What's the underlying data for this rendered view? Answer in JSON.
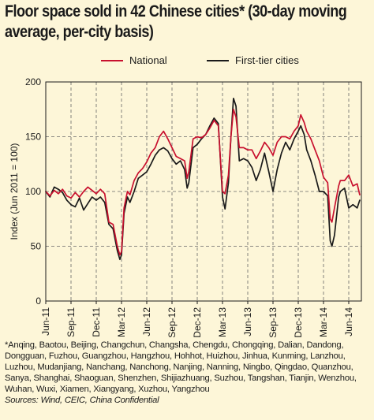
{
  "title_line1": "Floor space sold in 42 Chinese cities* (30-day moving",
  "title_line2": "average, per-city basis)",
  "footnote": "*Anqing, Baotou, Beijing, Changchun, Changsha, Chengdu, Chongqing, Dalian, Dandong, Dongguan, Fuzhou, Guangzhou, Hangzhou, Hohhot, Huizhou, Jinhua, Kunming, Lanzhou, Luzhou, Mudanjiang, Nanchang, Nanchong, Nanjing, Nanning, Ningbo, Qingdao, Quanzhou, Sanya, Shanghai, Shaoguan, Shenzhen, Shijiazhuang, Suzhou, Tangshan, Tianjin, Wenzhou, Wuhan, Wuxi, Xiamen, Xiangyang, Xuzhou, Yangzhou",
  "sources": "Sources: Wind, CEIC, China Confidential",
  "colors": {
    "national": "#c8102e",
    "first_tier": "#1a1a1a",
    "background": "#fdf6d8",
    "grid": "#555555"
  },
  "chart_data": {
    "type": "line",
    "title": "Floor space sold in 42 Chinese cities* (30-day moving average, per-city basis)",
    "xlabel": "",
    "ylabel": "Index (Jun 2011 = 100)",
    "ylim": [
      0,
      200
    ],
    "yticks": [
      0,
      50,
      100,
      150,
      200
    ],
    "xlim": [
      0,
      37.5
    ],
    "xticks": [
      {
        "label": "Jun-11",
        "x": 0
      },
      {
        "label": "Sep-11",
        "x": 3
      },
      {
        "label": "Dec-11",
        "x": 6
      },
      {
        "label": "Mar-12",
        "x": 9
      },
      {
        "label": "Jun-12",
        "x": 12
      },
      {
        "label": "Sep-12",
        "x": 15
      },
      {
        "label": "Dec-12",
        "x": 18
      },
      {
        "label": "Mar-13",
        "x": 21
      },
      {
        "label": "Jun-13",
        "x": 24
      },
      {
        "label": "Sep-13",
        "x": 27
      },
      {
        "label": "Dec-13",
        "x": 30
      },
      {
        "label": "Mar-14",
        "x": 33
      },
      {
        "label": "Jun-14",
        "x": 36
      }
    ],
    "x_unit": "months since Jun-11",
    "grid": true,
    "legend": "top",
    "series": [
      {
        "name": "National",
        "color": "#c8102e",
        "points": [
          [
            0,
            100
          ],
          [
            0.5,
            96
          ],
          [
            1,
            101
          ],
          [
            1.5,
            98
          ],
          [
            2,
            102
          ],
          [
            2.5,
            96
          ],
          [
            3,
            94
          ],
          [
            3.5,
            99
          ],
          [
            4,
            95
          ],
          [
            4.5,
            100
          ],
          [
            5,
            104
          ],
          [
            5.5,
            101
          ],
          [
            6,
            98
          ],
          [
            6.5,
            102
          ],
          [
            7,
            98
          ],
          [
            7.5,
            72
          ],
          [
            8,
            70
          ],
          [
            8.5,
            50
          ],
          [
            8.8,
            42
          ],
          [
            9,
            45
          ],
          [
            9.3,
            85
          ],
          [
            9.7,
            100
          ],
          [
            10,
            97
          ],
          [
            10.5,
            110
          ],
          [
            11,
            117
          ],
          [
            11.5,
            121
          ],
          [
            12,
            127
          ],
          [
            12.5,
            135
          ],
          [
            13,
            140
          ],
          [
            13.5,
            150
          ],
          [
            14,
            155
          ],
          [
            14.5,
            148
          ],
          [
            15,
            140
          ],
          [
            15.5,
            132
          ],
          [
            16,
            130
          ],
          [
            16.5,
            128
          ],
          [
            16.8,
            112
          ],
          [
            17,
            118
          ],
          [
            17.5,
            148
          ],
          [
            18,
            150
          ],
          [
            18.5,
            149
          ],
          [
            19,
            152
          ],
          [
            19.5,
            158
          ],
          [
            20,
            165
          ],
          [
            20.5,
            160
          ],
          [
            21,
            100
          ],
          [
            21.3,
            98
          ],
          [
            21.7,
            115
          ],
          [
            22,
            150
          ],
          [
            22.3,
            175
          ],
          [
            22.6,
            168
          ],
          [
            23,
            140
          ],
          [
            23.5,
            140
          ],
          [
            24,
            138
          ],
          [
            24.5,
            138
          ],
          [
            25,
            130
          ],
          [
            25.5,
            137
          ],
          [
            26,
            145
          ],
          [
            26.5,
            140
          ],
          [
            27,
            133
          ],
          [
            27.5,
            145
          ],
          [
            28,
            150
          ],
          [
            28.5,
            150
          ],
          [
            29,
            148
          ],
          [
            29.5,
            155
          ],
          [
            30,
            160
          ],
          [
            30.3,
            170
          ],
          [
            30.7,
            163
          ],
          [
            31,
            155
          ],
          [
            31.5,
            148
          ],
          [
            32,
            138
          ],
          [
            32.5,
            128
          ],
          [
            33,
            113
          ],
          [
            33.5,
            108
          ],
          [
            33.8,
            75
          ],
          [
            34,
            72
          ],
          [
            34.3,
            85
          ],
          [
            34.8,
            105
          ],
          [
            35,
            110
          ],
          [
            35.5,
            110
          ],
          [
            36,
            115
          ],
          [
            36.5,
            105
          ],
          [
            37,
            107
          ],
          [
            37.3,
            97
          ]
        ]
      },
      {
        "name": "First-tier cities",
        "color": "#1a1a1a",
        "points": [
          [
            0,
            100
          ],
          [
            0.5,
            95
          ],
          [
            1,
            104
          ],
          [
            1.5,
            102
          ],
          [
            2,
            99
          ],
          [
            2.5,
            92
          ],
          [
            3,
            88
          ],
          [
            3.5,
            86
          ],
          [
            4,
            94
          ],
          [
            4.5,
            83
          ],
          [
            5,
            89
          ],
          [
            5.5,
            95
          ],
          [
            6,
            92
          ],
          [
            6.5,
            95
          ],
          [
            7,
            90
          ],
          [
            7.5,
            70
          ],
          [
            8,
            66
          ],
          [
            8.5,
            46
          ],
          [
            8.8,
            38
          ],
          [
            9,
            42
          ],
          [
            9.3,
            80
          ],
          [
            9.7,
            95
          ],
          [
            10,
            90
          ],
          [
            10.5,
            100
          ],
          [
            11,
            112
          ],
          [
            11.5,
            115
          ],
          [
            12,
            118
          ],
          [
            12.5,
            125
          ],
          [
            13,
            133
          ],
          [
            13.5,
            138
          ],
          [
            14,
            140
          ],
          [
            14.5,
            137
          ],
          [
            15,
            130
          ],
          [
            15.5,
            125
          ],
          [
            16,
            128
          ],
          [
            16.5,
            120
          ],
          [
            16.8,
            103
          ],
          [
            17,
            108
          ],
          [
            17.5,
            140
          ],
          [
            18,
            143
          ],
          [
            18.5,
            148
          ],
          [
            19,
            152
          ],
          [
            19.5,
            160
          ],
          [
            20,
            167
          ],
          [
            20.5,
            162
          ],
          [
            21,
            95
          ],
          [
            21.3,
            84
          ],
          [
            21.7,
            108
          ],
          [
            22,
            150
          ],
          [
            22.3,
            185
          ],
          [
            22.6,
            178
          ],
          [
            23,
            128
          ],
          [
            23.5,
            130
          ],
          [
            24,
            128
          ],
          [
            24.5,
            122
          ],
          [
            25,
            110
          ],
          [
            25.5,
            120
          ],
          [
            26,
            135
          ],
          [
            26.5,
            118
          ],
          [
            27,
            100
          ],
          [
            27.5,
            120
          ],
          [
            28,
            135
          ],
          [
            28.5,
            145
          ],
          [
            29,
            138
          ],
          [
            29.5,
            148
          ],
          [
            30,
            155
          ],
          [
            30.3,
            160
          ],
          [
            30.7,
            152
          ],
          [
            31,
            138
          ],
          [
            31.5,
            128
          ],
          [
            32,
            115
          ],
          [
            32.5,
            100
          ],
          [
            33,
            100
          ],
          [
            33.5,
            96
          ],
          [
            33.8,
            55
          ],
          [
            34,
            50
          ],
          [
            34.3,
            60
          ],
          [
            34.8,
            95
          ],
          [
            35,
            100
          ],
          [
            35.5,
            103
          ],
          [
            36,
            85
          ],
          [
            36.5,
            88
          ],
          [
            37,
            85
          ],
          [
            37.3,
            92
          ]
        ]
      }
    ]
  }
}
